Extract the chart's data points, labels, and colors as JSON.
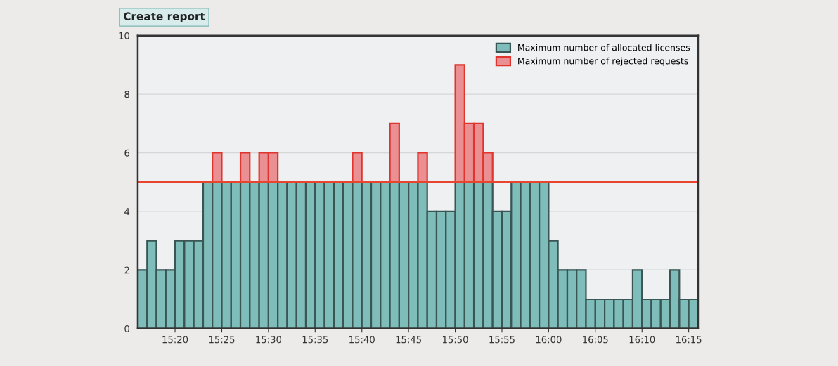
{
  "chart_data": {
    "type": "bar",
    "stacked": true,
    "x": [
      15.275,
      15.2917,
      15.3083,
      15.325,
      15.3417,
      15.3583,
      15.375,
      15.3917,
      15.4083,
      15.425,
      15.4417,
      15.4583,
      15.475,
      15.4917,
      15.5083,
      15.525,
      15.5417,
      15.5583,
      15.575,
      15.5917,
      15.6083,
      15.625,
      15.6417,
      15.6583,
      15.675,
      15.6917,
      15.7083,
      15.725,
      15.7417,
      15.7583,
      15.775,
      15.7917,
      15.8083,
      15.825,
      15.8417,
      15.8583,
      15.875,
      15.8917,
      15.9083,
      15.925,
      15.9417,
      15.9583,
      15.975,
      15.9917,
      16.0083,
      16.025,
      16.0417,
      16.0583,
      16.075,
      16.0917,
      16.1083,
      16.125,
      16.1417,
      16.1583,
      16.175,
      16.1917,
      16.2083,
      16.225,
      16.2417,
      16.2583
    ],
    "series": [
      {
        "name": "Maximum number of allocated licenses",
        "color": "#7fbdba",
        "values": [
          2,
          3,
          2,
          2,
          3,
          3,
          3,
          5,
          5,
          5,
          5,
          5,
          5,
          5,
          5,
          5,
          5,
          5,
          5,
          5,
          5,
          5,
          5,
          5,
          5,
          5,
          5,
          5,
          5,
          5,
          5,
          4,
          4,
          4,
          5,
          5,
          5,
          5,
          4,
          4,
          5,
          5,
          5,
          5,
          3,
          2,
          2,
          2,
          1,
          1,
          1,
          1,
          1,
          2,
          1,
          1,
          1,
          2,
          1,
          1
        ]
      },
      {
        "name": "Maximum number of rejected requests",
        "color": "#ea8f92",
        "values": [
          null,
          null,
          null,
          null,
          null,
          null,
          null,
          null,
          1,
          null,
          null,
          1,
          null,
          1,
          1,
          null,
          null,
          null,
          null,
          null,
          null,
          null,
          null,
          1,
          null,
          null,
          null,
          2,
          null,
          null,
          1,
          null,
          null,
          null,
          4,
          2,
          2,
          1,
          null,
          null,
          null,
          null,
          null,
          null,
          null,
          null,
          null,
          null,
          null,
          null,
          null,
          null,
          null,
          null,
          null,
          null,
          null,
          null,
          null,
          null
        ]
      }
    ],
    "xlim": [
      15.2667,
      16.2667
    ],
    "xticks": [
      {
        "value": 15.3333,
        "label": "15:20"
      },
      {
        "value": 15.4167,
        "label": "15:25"
      },
      {
        "value": 15.5,
        "label": "15:30"
      },
      {
        "value": 15.5833,
        "label": "15:35"
      },
      {
        "value": 15.6667,
        "label": "15:40"
      },
      {
        "value": 15.75,
        "label": "15:45"
      },
      {
        "value": 15.8333,
        "label": "15:50"
      },
      {
        "value": 15.9167,
        "label": "15:55"
      },
      {
        "value": 16,
        "label": "16:00"
      },
      {
        "value": 16.0833,
        "label": "16:05"
      },
      {
        "value": 16.1667,
        "label": "16:10"
      },
      {
        "value": 16.25,
        "label": "16:15"
      }
    ],
    "ylim": [
      0,
      10
    ],
    "yticks": [
      0,
      2,
      4,
      6,
      8,
      10
    ],
    "grid": "y",
    "legend": "top right",
    "ref_lines": [
      {
        "axis": "y",
        "value": 5,
        "color": "#e8442e"
      }
    ],
    "annotations": [
      "Create report"
    ]
  }
}
